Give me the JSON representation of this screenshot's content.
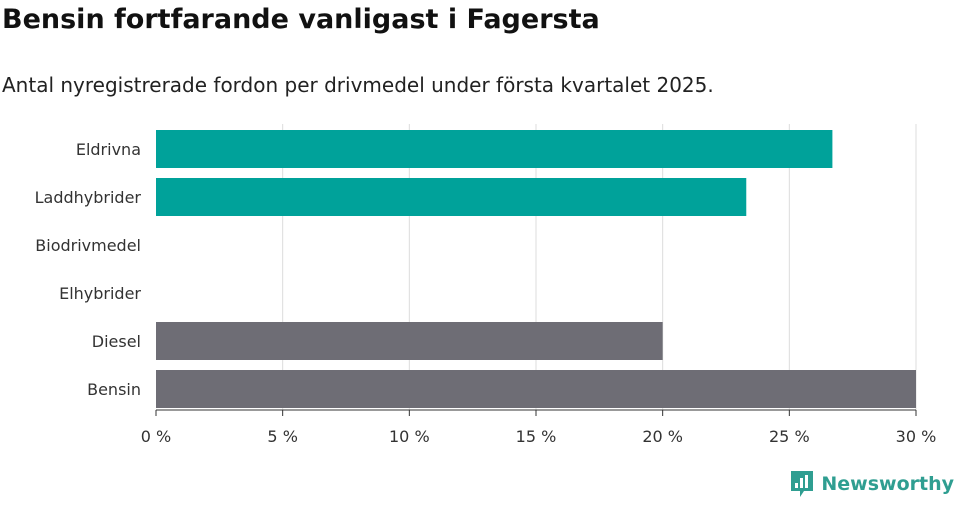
{
  "header": {
    "title": "Bensin fortfarande vanligast i Fagersta",
    "subtitle": "Antal nyregistrerade fordon per drivmedel under första kvartalet 2025."
  },
  "brand": {
    "name": "Newsworthy",
    "icon": "newsworthy-logo-icon",
    "color": "#2f9e91"
  },
  "chart_data": {
    "type": "bar",
    "orientation": "horizontal",
    "categories": [
      "Eldrivna",
      "Laddhybrider",
      "Biodrivmedel",
      "Elhybrider",
      "Diesel",
      "Bensin"
    ],
    "values": [
      26.7,
      23.3,
      0,
      0,
      20.0,
      30.0
    ],
    "colors": [
      "#00a29a",
      "#00a29a",
      "#00a29a",
      "#00a29a",
      "#6e6d75",
      "#6e6d75"
    ],
    "xlim": [
      0,
      30
    ],
    "xticks": [
      0,
      5,
      10,
      15,
      20,
      25,
      30
    ],
    "xtick_labels": [
      "0 %",
      "5 %",
      "10 %",
      "15 %",
      "20 %",
      "25 %",
      "30 %"
    ],
    "grid": true,
    "legend": "none"
  }
}
